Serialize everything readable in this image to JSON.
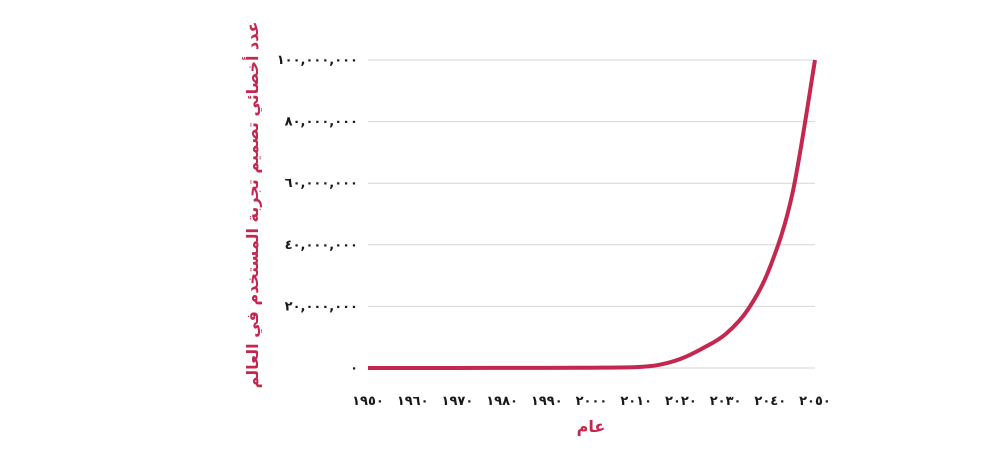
{
  "colors": {
    "line": "#c4284f",
    "axis_title": "#c4284f",
    "grid": "#d6d6d6",
    "tick_text": "#1a1a1a",
    "background": "#ffffff"
  },
  "chart_data": {
    "type": "line",
    "xlabel": "عام",
    "ylabel": "عدد أخصائي تصميم تجربة المستخدم في العالم",
    "xlim": [
      1950,
      2050
    ],
    "ylim": [
      0,
      100000000
    ],
    "grid": true,
    "x_ticks": [
      1950,
      1960,
      1970,
      1980,
      1990,
      2000,
      2010,
      2020,
      2030,
      2040,
      2050
    ],
    "x_tick_labels": [
      "١٩٥٠",
      "١٩٦٠",
      "١٩٧٠",
      "١٩٨٠",
      "١٩٩٠",
      "٢٠٠٠",
      "٢٠١٠",
      "٢٠٢٠",
      "٢٠٣٠",
      "٢٠٤٠",
      "٢٠٥٠"
    ],
    "y_ticks": [
      0,
      20000000,
      40000000,
      60000000,
      80000000,
      100000000
    ],
    "y_tick_labels": [
      "٠",
      "٢٠,٠٠٠,٠٠٠",
      "٤٠,٠٠٠,٠٠٠",
      "٦٠,٠٠٠,٠٠٠",
      "٨٠,٠٠٠,٠٠٠",
      "١٠٠,٠٠٠,٠٠٠"
    ],
    "series": [
      {
        "x": [
          1950,
          1970,
          1990,
          2000,
          2010,
          2015,
          2020,
          2025,
          2030,
          2035,
          2040,
          2045,
          2050
        ],
        "y": [
          0,
          10000,
          50000,
          100000,
          300000,
          1000000,
          3000000,
          6500000,
          11000000,
          19000000,
          33000000,
          57000000,
          100000000
        ]
      }
    ]
  }
}
